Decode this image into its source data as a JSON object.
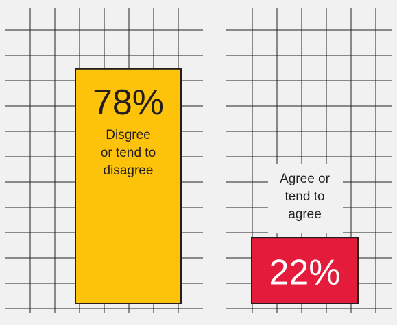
{
  "chart_data": {
    "type": "bar",
    "title": "",
    "xlabel": "",
    "ylabel": "",
    "ylim": [
      0,
      100
    ],
    "grid": true,
    "legend": "none",
    "categories": [
      "Disgree or tend to disagree",
      "Agree or tend to agree"
    ],
    "values": [
      78,
      22
    ],
    "bars": [
      {
        "category": "Disgree or tend to disagree",
        "value": 78,
        "value_label": "78%",
        "text_lines": [
          "Disgree",
          "or tend to",
          "disagree"
        ],
        "color": "#fdc20a"
      },
      {
        "category": "Agree or tend to agree",
        "value": 22,
        "value_label": "22%",
        "text_lines": [
          "Agree or",
          "tend to",
          "agree"
        ],
        "color": "#e51b3c"
      }
    ]
  },
  "colors": {
    "background": "#f1f1f2",
    "grid": "#231f20",
    "bar_stroke": "#231f20",
    "label_text": "#231f20",
    "value_text_on_red": "#ffffff",
    "value_text_on_yellow": "#231f20"
  }
}
